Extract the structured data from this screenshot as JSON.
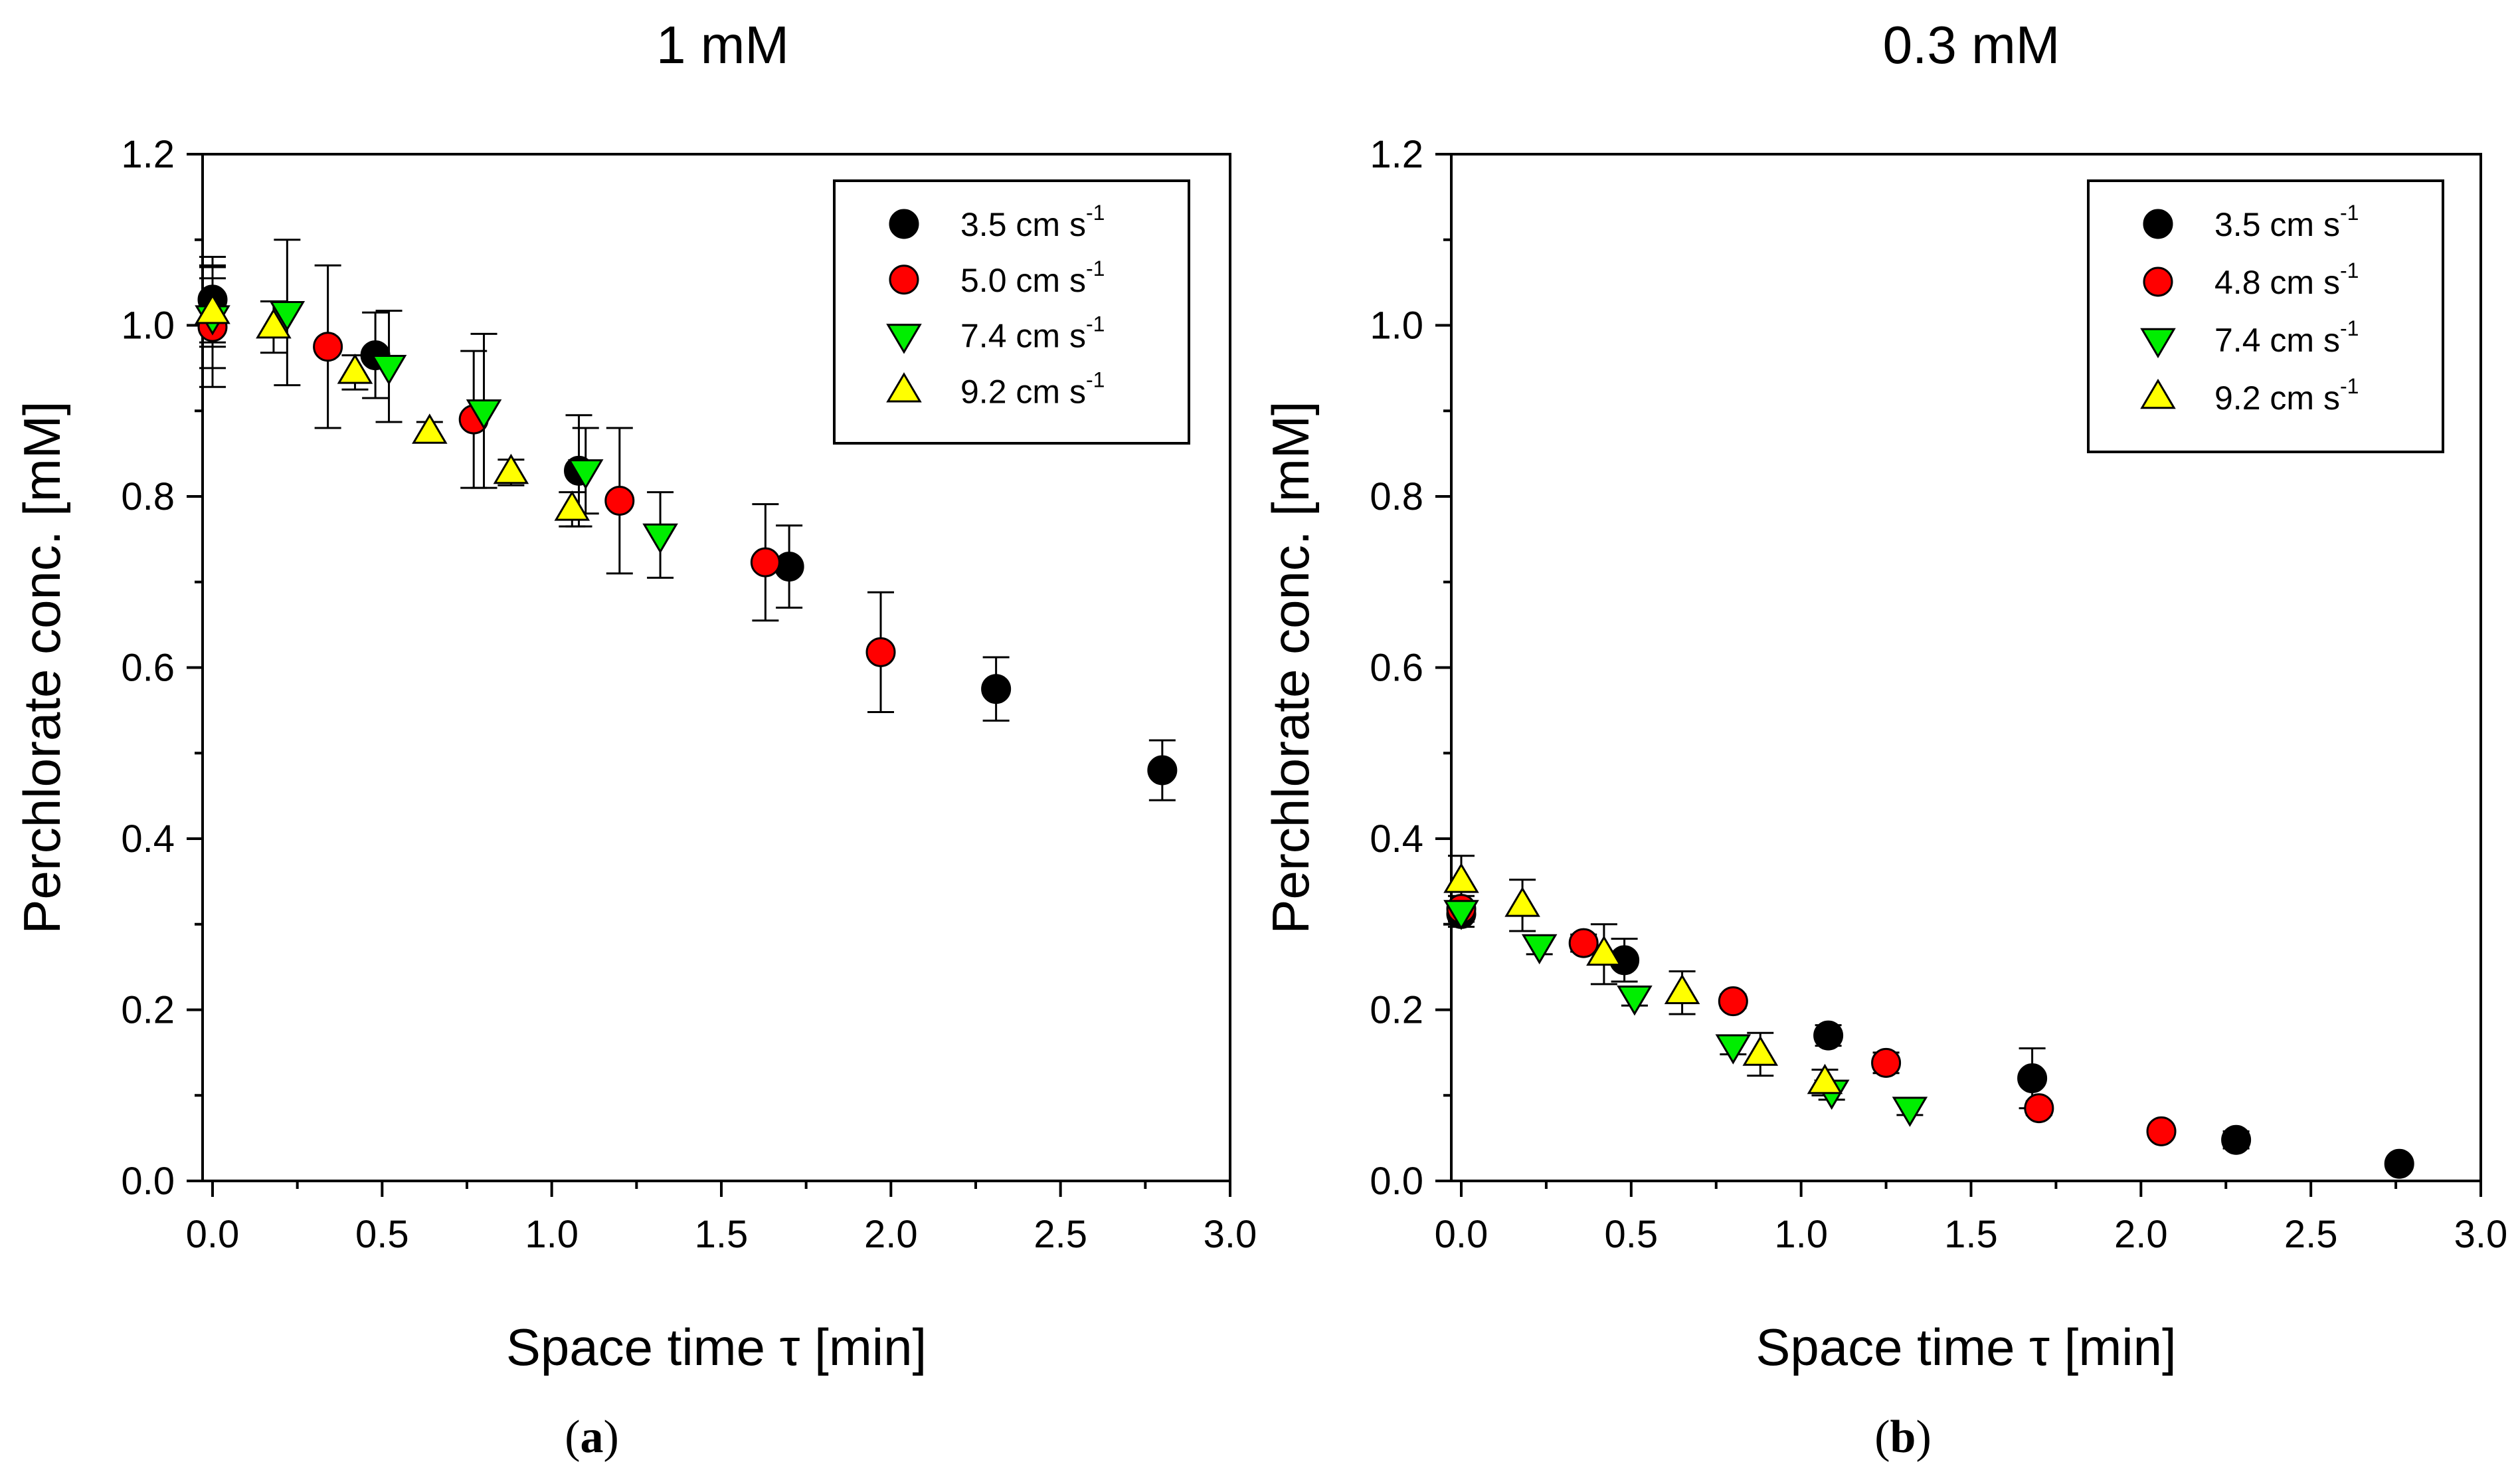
{
  "figure": {
    "panel_a_label": "a",
    "panel_b_label": "b"
  },
  "chart_data": [
    {
      "type": "scatter",
      "title": "1 mM",
      "xlabel": "Space time τ [min]",
      "ylabel": "Perchlorate conc. [mM]",
      "xlim": [
        0.0,
        3.0
      ],
      "ylim": [
        0.0,
        1.2
      ],
      "xticks": [
        "0.0",
        "0.5",
        "1.0",
        "1.5",
        "2.0",
        "2.5",
        "3.0"
      ],
      "yticks": [
        "0.0",
        "0.2",
        "0.4",
        "0.6",
        "0.8",
        "1.0",
        "1.2"
      ],
      "series": [
        {
          "name": "3.5 cm s-1",
          "legend_base": "3.5 cm s",
          "legend_sup": "-1",
          "marker": "circle",
          "color": "#000000",
          "x": [
            0.0,
            0.48,
            1.08,
            1.7,
            2.31,
            2.8
          ],
          "y": [
            1.03,
            0.965,
            0.83,
            0.718,
            0.575,
            0.48
          ],
          "err": [
            0.05,
            0.05,
            0.065,
            0.048,
            0.037,
            0.035
          ]
        },
        {
          "name": "5.0 cm s-1",
          "legend_base": "5.0 cm s",
          "legend_sup": "-1",
          "marker": "circle",
          "color": "#ff0000",
          "x": [
            0.0,
            0.34,
            0.77,
            1.2,
            1.63,
            1.97
          ],
          "y": [
            0.998,
            0.975,
            0.89,
            0.795,
            0.723,
            0.618
          ],
          "err": [
            0.07,
            0.095,
            0.08,
            0.085,
            0.068,
            0.07
          ]
        },
        {
          "name": "7.4 cm s-1",
          "legend_base": "7.4 cm s",
          "legend_sup": "-1",
          "marker": "triangle-down",
          "color": "#00ee00",
          "x": [
            0.0,
            0.22,
            0.52,
            0.8,
            1.1,
            1.32
          ],
          "y": [
            1.01,
            1.015,
            0.952,
            0.9,
            0.83,
            0.755
          ],
          "err": [
            0.06,
            0.085,
            0.065,
            0.09,
            0.05,
            0.05
          ]
        },
        {
          "name": "9.2 cm s-1",
          "legend_base": "9.2 cm s",
          "legend_sup": "-1",
          "marker": "triangle-up",
          "color": "#ffff00",
          "x": [
            0.0,
            0.18,
            0.42,
            0.64,
            0.88,
            1.06
          ],
          "y": [
            1.015,
            0.998,
            0.945,
            0.875,
            0.828,
            0.785
          ],
          "err": [
            0.04,
            0.03,
            0.02,
            0.012,
            0.015,
            0.02
          ]
        }
      ]
    },
    {
      "type": "scatter",
      "title": "0.3 mM",
      "xlabel": "Space time τ [min]",
      "ylabel": "Perchlorate conc. [mM]",
      "xlim": [
        0.0,
        3.0
      ],
      "ylim": [
        0.0,
        1.2
      ],
      "xticks": [
        "0.0",
        "0.5",
        "1.0",
        "1.5",
        "2.0",
        "2.5",
        "3.0"
      ],
      "yticks": [
        "0.0",
        "0.2",
        "0.4",
        "0.6",
        "0.8",
        "1.0",
        "1.2"
      ],
      "series": [
        {
          "name": "3.5 cm s-1",
          "legend_base": "3.5 cm s",
          "legend_sup": "-1",
          "marker": "circle",
          "color": "#000000",
          "x": [
            0.0,
            0.48,
            1.08,
            1.68,
            2.28,
            2.76
          ],
          "y": [
            0.312,
            0.258,
            0.17,
            0.12,
            0.048,
            0.02
          ],
          "err": [
            0.015,
            0.025,
            0.012,
            0.035,
            0.01,
            0.006
          ]
        },
        {
          "name": "4.8 cm s-1",
          "legend_base": "4.8 cm s",
          "legend_sup": "-1",
          "marker": "circle",
          "color": "#ff0000",
          "x": [
            0.0,
            0.36,
            0.8,
            1.25,
            1.7,
            2.06
          ],
          "y": [
            0.318,
            0.278,
            0.21,
            0.138,
            0.085,
            0.058
          ],
          "err": [
            0.015,
            0.01,
            0.008,
            0.012,
            0.008,
            0.006
          ]
        },
        {
          "name": "7.4 cm s-1",
          "legend_base": "7.4 cm s",
          "legend_sup": "-1",
          "marker": "triangle-down",
          "color": "#00ee00",
          "x": [
            0.0,
            0.23,
            0.51,
            0.8,
            1.09,
            1.32
          ],
          "y": [
            0.315,
            0.275,
            0.215,
            0.158,
            0.105,
            0.085
          ],
          "err": [
            0.012,
            0.01,
            0.01,
            0.01,
            0.01,
            0.008
          ]
        },
        {
          "name": "9.2 cm s-1",
          "legend_base": "9.2 cm s",
          "legend_sup": "-1",
          "marker": "triangle-up",
          "color": "#ffff00",
          "x": [
            0.0,
            0.18,
            0.42,
            0.65,
            0.88,
            1.07
          ],
          "y": [
            0.35,
            0.322,
            0.265,
            0.22,
            0.148,
            0.115
          ],
          "err": [
            0.03,
            0.03,
            0.035,
            0.025,
            0.025,
            0.015
          ]
        }
      ]
    }
  ]
}
